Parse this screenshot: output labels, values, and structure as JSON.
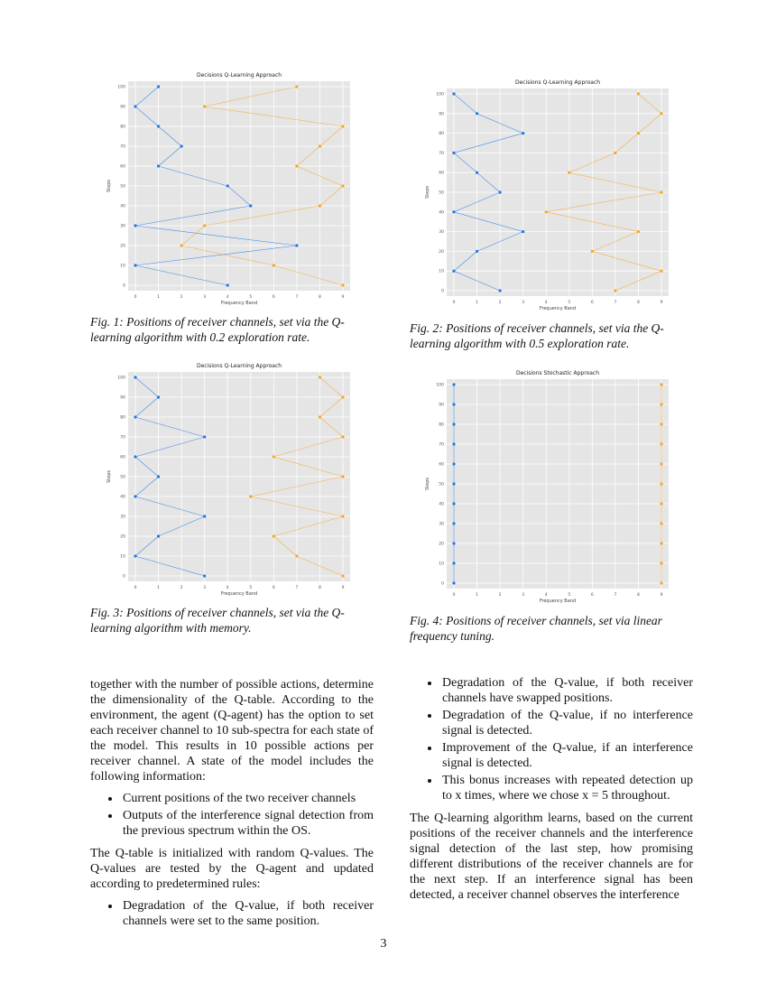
{
  "figures": [
    {
      "caption": "Fig. 1: Positions of receiver channels, set via the Q-learning algorithm with 0.2 exploration rate.",
      "chart_data": {
        "type": "line",
        "title": "Decisions Q-Learning Approach",
        "xlabel": "Frequency Band",
        "ylabel": "Steps",
        "x_ticks": [
          "0",
          "1",
          "2",
          "3",
          "4",
          "5",
          "6",
          "7",
          "8",
          "9"
        ],
        "y_ticks": [
          "0",
          "10",
          "20",
          "30",
          "40",
          "50",
          "60",
          "70",
          "80",
          "90",
          "100"
        ],
        "xlim": [
          0,
          9
        ],
        "ylim": [
          0,
          100
        ],
        "series_colors": {
          "channel_1": "#1f77e4",
          "channel_2": "#f5a623"
        },
        "series": [
          {
            "steps": [
              0,
              10,
              20,
              30,
              40,
              50,
              60,
              70,
              80,
              90,
              100
            ],
            "values": [
              [
                4,
                9
              ],
              [
                0,
                6
              ],
              [
                7,
                2
              ],
              [
                0,
                3
              ],
              [
                5,
                8
              ],
              [
                4,
                9
              ],
              [
                1,
                7
              ],
              [
                2,
                8
              ],
              [
                1,
                9
              ],
              [
                0,
                3
              ],
              [
                1,
                7
              ]
            ]
          }
        ],
        "grid": true
      }
    },
    {
      "caption": "Fig. 2: Positions of receiver channels, set via the Q-learning algorithm with 0.5 exploration rate.",
      "chart_data": {
        "type": "line",
        "title": "Decisions Q-Learning Approach",
        "xlabel": "Frequency Band",
        "ylabel": "Steps",
        "x_ticks": [
          "0",
          "1",
          "2",
          "3",
          "4",
          "5",
          "6",
          "7",
          "8",
          "9"
        ],
        "y_ticks": [
          "0",
          "10",
          "20",
          "30",
          "40",
          "50",
          "60",
          "70",
          "80",
          "90",
          "100"
        ],
        "xlim": [
          0,
          9
        ],
        "ylim": [
          0,
          100
        ],
        "series_colors": {
          "channel_1": "#1f77e4",
          "channel_2": "#f5a623"
        },
        "series": [
          {
            "steps": [
              0,
              10,
              20,
              30,
              40,
              50,
              60,
              70,
              80,
              90,
              100
            ],
            "values": [
              [
                2,
                7
              ],
              [
                0,
                9
              ],
              [
                1,
                6
              ],
              [
                3,
                8
              ],
              [
                0,
                4
              ],
              [
                2,
                9
              ],
              [
                1,
                5
              ],
              [
                0,
                7
              ],
              [
                3,
                8
              ],
              [
                1,
                9
              ],
              [
                0,
                8
              ]
            ]
          }
        ],
        "grid": true
      }
    },
    {
      "caption": "Fig. 3: Positions of receiver channels, set via the Q-learning algorithm with memory.",
      "chart_data": {
        "type": "line",
        "title": "Decisions Q-Learning Approach",
        "xlabel": "Frequency Band",
        "ylabel": "Steps",
        "x_ticks": [
          "0",
          "1",
          "2",
          "3",
          "4",
          "5",
          "6",
          "7",
          "8",
          "9"
        ],
        "y_ticks": [
          "0",
          "10",
          "20",
          "30",
          "40",
          "50",
          "60",
          "70",
          "80",
          "90",
          "100"
        ],
        "xlim": [
          0,
          9
        ],
        "ylim": [
          0,
          100
        ],
        "series_colors": {
          "channel_1": "#1f77e4",
          "channel_2": "#f5a623"
        },
        "series": [
          {
            "steps": [
              0,
              10,
              20,
              30,
              40,
              50,
              60,
              70,
              80,
              90,
              100
            ],
            "values": [
              [
                3,
                9
              ],
              [
                0,
                7
              ],
              [
                1,
                6
              ],
              [
                3,
                9
              ],
              [
                0,
                5
              ],
              [
                1,
                9
              ],
              [
                0,
                6
              ],
              [
                3,
                9
              ],
              [
                0,
                8
              ],
              [
                1,
                9
              ],
              [
                0,
                8
              ]
            ]
          }
        ],
        "grid": true
      }
    },
    {
      "caption": "Fig. 4: Positions of receiver channels, set via linear frequency tuning.",
      "chart_data": {
        "type": "line",
        "title": "Decisions Stochastic Approach",
        "xlabel": "Frequency Band",
        "ylabel": "Steps",
        "x_ticks": [
          "0",
          "1",
          "2",
          "3",
          "4",
          "5",
          "6",
          "7",
          "8",
          "9"
        ],
        "y_ticks": [
          "0",
          "10",
          "20",
          "30",
          "40",
          "50",
          "60",
          "70",
          "80",
          "90",
          "100"
        ],
        "xlim": [
          0,
          9
        ],
        "ylim": [
          0,
          100
        ],
        "series_colors": {
          "channel_1": "#1f77e4",
          "channel_2": "#f5a623"
        },
        "series": [
          {
            "steps": [
              0,
              10,
              20,
              30,
              40,
              50,
              60,
              70,
              80,
              90,
              100
            ],
            "values": [
              [
                0,
                9
              ],
              [
                0,
                9
              ],
              [
                0,
                9
              ],
              [
                0,
                9
              ],
              [
                0,
                9
              ],
              [
                0,
                9
              ],
              [
                0,
                9
              ],
              [
                0,
                9
              ],
              [
                0,
                9
              ],
              [
                0,
                9
              ],
              [
                0,
                9
              ]
            ]
          }
        ],
        "grid": true
      }
    }
  ],
  "left_column": {
    "p1": "together with the number of possible actions, determine the dimensionality of the Q-table. According to the environment, the agent (Q-agent) has the option to set each receiver channel to 10 sub-spectra for each state of the model. This results in 10 possible actions per receiver channel. A state of the model includes the following information:",
    "list1": [
      "Current positions of the two receiver channels",
      "Outputs of the interference signal detection from the previous spectrum within the OS."
    ],
    "p2": "The Q-table is initialized with random Q-values. The Q-values are tested by the Q-agent and updated according to predetermined rules:",
    "list2": [
      "Degradation of the Q-value, if both receiver channels were set to the same position."
    ]
  },
  "right_column": {
    "list1": [
      "Degradation of the Q-value, if both receiver channels have swapped positions.",
      "Degradation of the Q-value, if no interference signal is detected.",
      "Improvement of the Q-value, if an interference signal is detected.",
      "This bonus increases with repeated detection up to x times, where we chose x = 5 throughout."
    ],
    "p1": "The Q-learning algorithm learns, based on the current positions of the receiver channels and the interference signal detection of the last step, how promising different distributions of the receiver channels are for the next step. If an interference signal has been detected, a receiver channel observes the interference"
  },
  "page_number": "3"
}
